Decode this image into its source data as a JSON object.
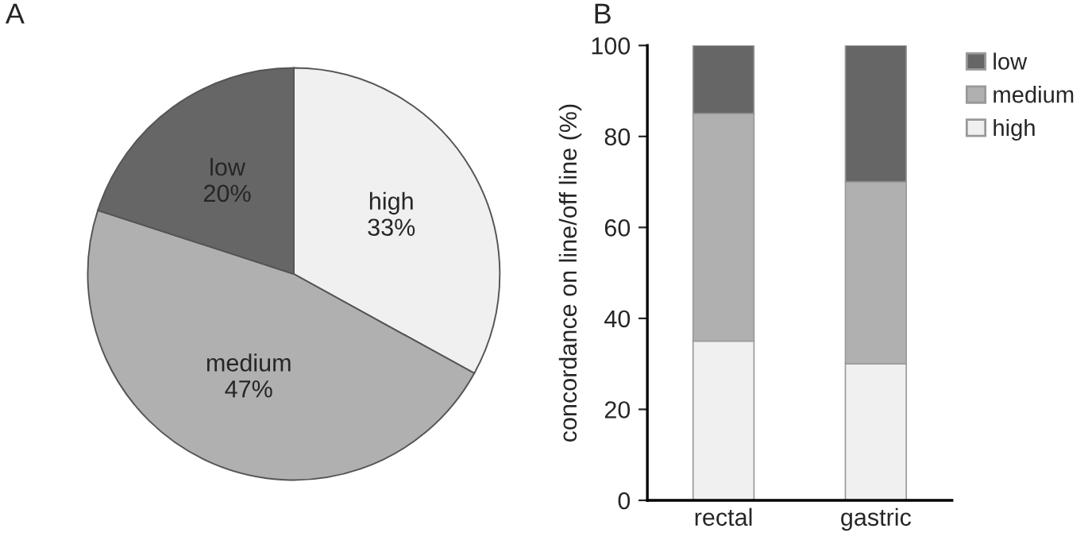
{
  "chart_data": [
    {
      "type": "pie",
      "categories": [
        "high",
        "medium",
        "low"
      ],
      "values": [
        33,
        47,
        20
      ],
      "colors": [
        "#f0f0f0",
        "#b0b0b0",
        "#666666"
      ],
      "value_labels": [
        "33%",
        "47%",
        "20%"
      ],
      "annotations": [
        "A"
      ],
      "legend": false
    },
    {
      "type": "bar",
      "stacked": true,
      "categories": [
        "rectal",
        "gastric"
      ],
      "ylabel": "concordance on line/off line (%)",
      "ylim": [
        0,
        100
      ],
      "yticks": [
        0,
        20,
        40,
        60,
        80,
        100
      ],
      "grid": false,
      "legend": "top right",
      "annotations": [
        "B"
      ],
      "series": [
        {
          "name": "high",
          "color": "#f0f0f0",
          "values": [
            35,
            30
          ]
        },
        {
          "name": "medium",
          "color": "#b0b0b0",
          "values": [
            50,
            40
          ]
        },
        {
          "name": "low",
          "color": "#666666",
          "values": [
            15,
            30
          ]
        }
      ]
    }
  ]
}
